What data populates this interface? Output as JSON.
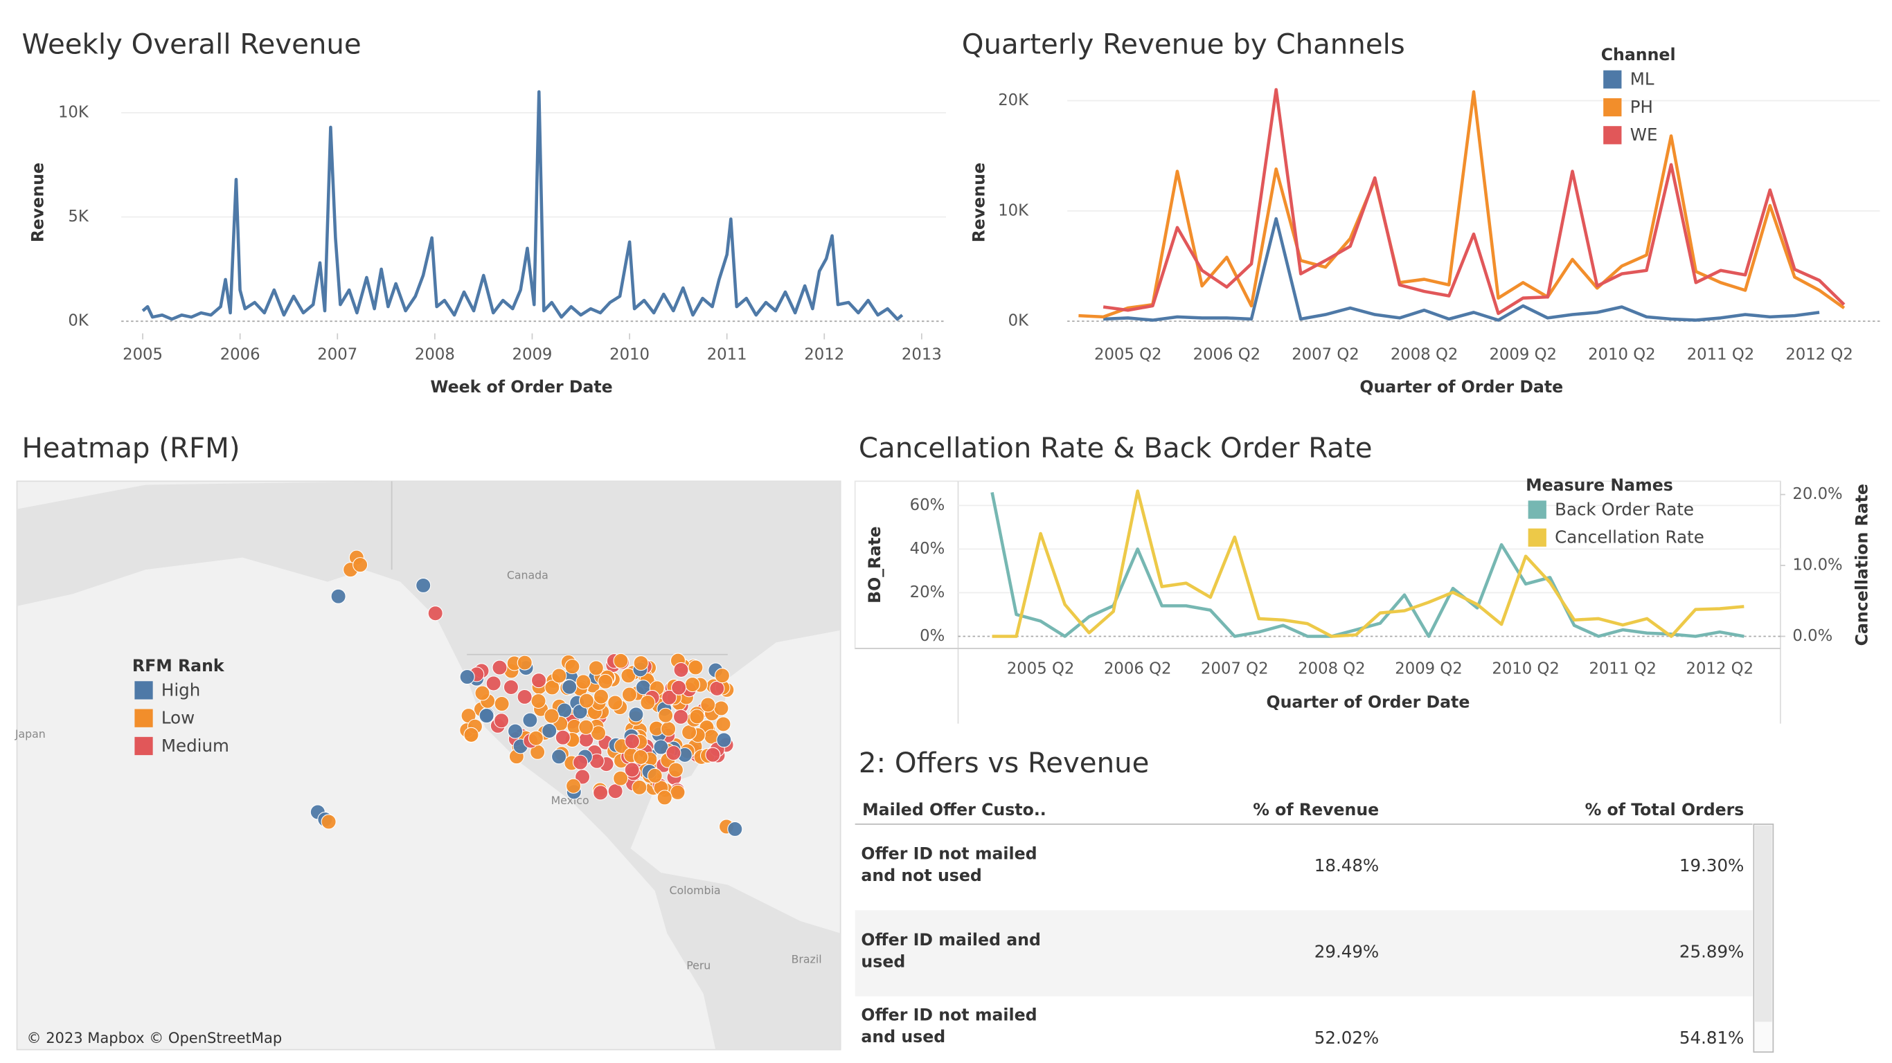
{
  "chart_data": [
    {
      "type": "line",
      "title": "Weekly Overall Revenue",
      "x_label": "Week of Order Date",
      "y_label": "Revenue",
      "x": [
        2005.0,
        2005.05,
        2005.1,
        2005.2,
        2005.3,
        2005.4,
        2005.5,
        2005.6,
        2005.7,
        2005.8,
        2005.85,
        2005.9,
        2005.96,
        2006.0,
        2006.05,
        2006.15,
        2006.25,
        2006.35,
        2006.45,
        2006.55,
        2006.65,
        2006.75,
        2006.82,
        2006.87,
        2006.93,
        2006.98,
        2007.03,
        2007.12,
        2007.2,
        2007.3,
        2007.38,
        2007.45,
        2007.52,
        2007.6,
        2007.7,
        2007.8,
        2007.88,
        2007.97,
        2008.02,
        2008.1,
        2008.2,
        2008.3,
        2008.4,
        2008.5,
        2008.6,
        2008.7,
        2008.8,
        2008.88,
        2008.95,
        2009.02,
        2009.07,
        2009.12,
        2009.2,
        2009.3,
        2009.4,
        2009.5,
        2009.6,
        2009.7,
        2009.8,
        2009.9,
        2009.95,
        2010.0,
        2010.05,
        2010.15,
        2010.25,
        2010.35,
        2010.45,
        2010.55,
        2010.65,
        2010.75,
        2010.85,
        2010.92,
        2011.0,
        2011.04,
        2011.1,
        2011.2,
        2011.3,
        2011.4,
        2011.5,
        2011.6,
        2011.7,
        2011.8,
        2011.88,
        2011.95,
        2012.02,
        2012.08,
        2012.14,
        2012.25,
        2012.35,
        2012.45,
        2012.55,
        2012.65,
        2012.75,
        2012.8
      ],
      "series": [
        {
          "color": "#4e79a7",
          "values": [
            500,
            700,
            200,
            300,
            100,
            300,
            200,
            400,
            300,
            700,
            2000,
            400,
            6800,
            1500,
            600,
            900,
            400,
            1500,
            300,
            1200,
            400,
            800,
            2800,
            500,
            9300,
            4000,
            800,
            1500,
            400,
            2100,
            600,
            2500,
            700,
            1800,
            500,
            1200,
            2200,
            4000,
            700,
            1000,
            300,
            1400,
            500,
            2200,
            400,
            1000,
            600,
            1500,
            3500,
            800,
            11000,
            500,
            900,
            200,
            700,
            300,
            600,
            400,
            900,
            1200,
            2500,
            3800,
            600,
            1000,
            400,
            1300,
            500,
            1600,
            300,
            1100,
            700,
            2000,
            3200,
            4900,
            700,
            1100,
            300,
            900,
            500,
            1400,
            400,
            1700,
            600,
            2400,
            3000,
            4100,
            800,
            900,
            400,
            1000,
            300,
            600,
            100,
            300
          ]
        }
      ],
      "xlim": [
        2004.78,
        2013.25
      ],
      "xticks": [
        2005,
        2006,
        2007,
        2008,
        2009,
        2010,
        2011,
        2012,
        2013
      ],
      "ylim": [
        -580,
        11450
      ],
      "yticks": [
        {
          "value": 0,
          "label": "0K"
        },
        {
          "value": 5000,
          "label": "5K"
        },
        {
          "value": 10000,
          "label": "10K"
        }
      ],
      "grid": true
    },
    {
      "type": "line",
      "title": "Quarterly Revenue by Channels",
      "x_label": "Quarter of Order Date",
      "y_label": "Revenue",
      "legend_title": "Channel",
      "categories": [
        null,
        null,
        "2005 Q2",
        null,
        null,
        null,
        "2006 Q2",
        null,
        null,
        null,
        "2007 Q2",
        null,
        null,
        null,
        "2008 Q2",
        null,
        null,
        null,
        "2009 Q2",
        null,
        null,
        null,
        "2010 Q2",
        null,
        null,
        null,
        "2011 Q2",
        null,
        null,
        null,
        "2012 Q2",
        null
      ],
      "series": [
        {
          "name": "ML",
          "color": "#4e79a7",
          "values": [
            null,
            200,
            300,
            100,
            400,
            300,
            300,
            200,
            9300,
            200,
            600,
            1200,
            600,
            300,
            1000,
            200,
            800,
            100,
            1400,
            300,
            600,
            800,
            1300,
            400,
            200,
            100,
            300,
            600,
            400,
            500,
            800,
            null
          ]
        },
        {
          "name": "PH",
          "color": "#f28e2b",
          "values": [
            500,
            400,
            1200,
            1500,
            13600,
            3200,
            5800,
            1400,
            13800,
            5500,
            4900,
            7500,
            12800,
            3500,
            3800,
            3300,
            20800,
            2100,
            3500,
            2200,
            5600,
            3000,
            5000,
            6000,
            16800,
            4500,
            3500,
            2800,
            10500,
            4000,
            2800,
            1200
          ]
        },
        {
          "name": "WE",
          "color": "#e15759",
          "values": [
            null,
            1300,
            1000,
            1400,
            8500,
            4600,
            3100,
            5200,
            21000,
            4300,
            5500,
            6800,
            13000,
            3300,
            2700,
            2300,
            7900,
            700,
            2100,
            2200,
            13600,
            3200,
            4300,
            4600,
            14200,
            3500,
            4600,
            4200,
            11900,
            4700,
            3700,
            1500
          ]
        }
      ],
      "ylim": [
        -1100,
        22530
      ],
      "yticks": [
        {
          "value": 0,
          "label": "0K"
        },
        {
          "value": 10000,
          "label": "10K"
        },
        {
          "value": 20000,
          "label": "20K"
        }
      ],
      "grid": true
    },
    {
      "type": "line",
      "title": "Cancellation Rate & Back Order Rate",
      "x_label": "Quarter of Order Date",
      "y_label": "BO_Rate",
      "y2_label": "Cancellation Rate",
      "legend_title": "Measure Names",
      "categories": [
        null,
        null,
        "2005 Q2",
        null,
        null,
        null,
        "2006 Q2",
        null,
        null,
        null,
        "2007 Q2",
        null,
        null,
        null,
        "2008 Q2",
        null,
        null,
        null,
        "2009 Q2",
        null,
        null,
        null,
        "2010 Q2",
        null,
        null,
        null,
        "2011 Q2",
        null,
        null,
        null,
        "2012 Q2",
        null
      ],
      "series": [
        {
          "name": "Back Order Rate",
          "color": "#76b7b2",
          "values": [
            66,
            10,
            7,
            0,
            9,
            14,
            40,
            14,
            14,
            12,
            0,
            2,
            5,
            0,
            0,
            3,
            6,
            19,
            0,
            22,
            13,
            42,
            24,
            27,
            5,
            0,
            3,
            1.5,
            1,
            0,
            2,
            0
          ]
        },
        {
          "name": "Cancellation Rate",
          "color": "#edc948",
          "axis": "y2",
          "values": [
            0,
            0,
            14.5,
            4.5,
            0.5,
            3.5,
            20.5,
            7,
            7.5,
            5.5,
            14,
            2.5,
            2.3,
            1.8,
            0,
            0.2,
            3.3,
            3.6,
            4.8,
            6.2,
            4.5,
            1.7,
            11.3,
            7.6,
            2.3,
            2.5,
            1.6,
            2.5,
            0,
            3.8,
            3.9,
            4.2
          ]
        }
      ],
      "ylim": [
        -5.56,
        71.1
      ],
      "yticks": [
        {
          "value": 0,
          "label": "0%"
        },
        {
          "value": 20,
          "label": "20%"
        },
        {
          "value": 40,
          "label": "40%"
        },
        {
          "value": 60,
          "label": "60%"
        }
      ],
      "y2lim": [
        -1.71,
        21.88
      ],
      "y2ticks": [
        {
          "value": 0,
          "label": "0.0%"
        },
        {
          "value": 10,
          "label": "10.0%"
        },
        {
          "value": 20,
          "label": "20.0%"
        }
      ],
      "grid": true
    }
  ],
  "map": {
    "title": "Heatmap (RFM)",
    "legend_title": "RFM Rank",
    "legend": [
      {
        "name": "High",
        "color": "#4e79a7"
      },
      {
        "name": "Low",
        "color": "#f28e2b"
      },
      {
        "name": "Medium",
        "color": "#e15759"
      }
    ],
    "labels": [
      "Canada",
      "Japan",
      "Mexico",
      "Colombia",
      "Peru",
      "Brazil"
    ],
    "attribution": "© 2023 Mapbox © OpenStreetMap"
  },
  "table": {
    "title": "2: Offers vs Revenue",
    "columns": [
      "Mailed Offer Custo..",
      "% of Revenue",
      "% of Total Orders"
    ],
    "rows": [
      [
        "Offer ID not mailed and not used",
        "18.48%",
        "19.30%"
      ],
      [
        "Offer ID mailed and used",
        "29.49%",
        "25.89%"
      ],
      [
        "Offer ID not mailed and used",
        "52.02%",
        "54.81%"
      ]
    ]
  }
}
